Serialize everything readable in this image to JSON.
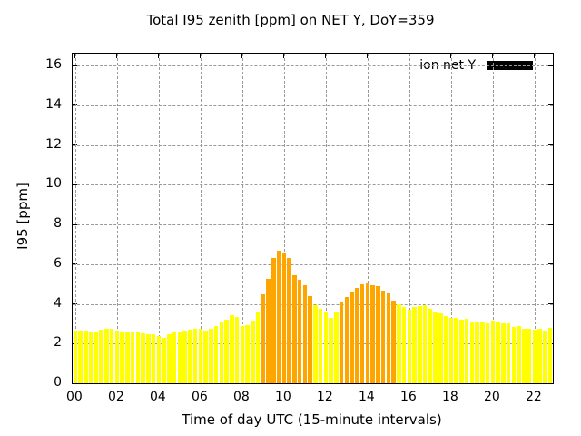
{
  "legend": {
    "label": "ion net Y",
    "swatch_color": "#000000"
  },
  "colors": {
    "background": "#ffffff",
    "axis": "#000000",
    "grid": "#9a9a9a",
    "bar_normal": "#ffff00",
    "bar_highlight": "#ffa500",
    "legend_swatch": "#000000",
    "text": "#000000"
  },
  "chart_data": {
    "type": "bar",
    "title": "Total I95 zenith [ppm] on NET Y, DoY=359",
    "xlabel": "Time of day UTC (15-minute intervals)",
    "ylabel": "I95 [ppm]",
    "x_interval_minutes": 15,
    "x": [
      "00:00",
      "00:15",
      "00:30",
      "00:45",
      "01:00",
      "01:15",
      "01:30",
      "01:45",
      "02:00",
      "02:15",
      "02:30",
      "02:45",
      "03:00",
      "03:15",
      "03:30",
      "03:45",
      "04:00",
      "04:15",
      "04:30",
      "04:45",
      "05:00",
      "05:15",
      "05:30",
      "05:45",
      "06:00",
      "06:15",
      "06:30",
      "06:45",
      "07:00",
      "07:15",
      "07:30",
      "07:45",
      "08:00",
      "08:15",
      "08:30",
      "08:45",
      "09:00",
      "09:15",
      "09:30",
      "09:45",
      "10:00",
      "10:15",
      "10:30",
      "10:45",
      "11:00",
      "11:15",
      "11:30",
      "11:45",
      "12:00",
      "12:15",
      "12:30",
      "12:45",
      "13:00",
      "13:15",
      "13:30",
      "13:45",
      "14:00",
      "14:15",
      "14:30",
      "14:45",
      "15:00",
      "15:15",
      "15:30",
      "15:45",
      "16:00",
      "16:15",
      "16:30",
      "16:45",
      "17:00",
      "17:15",
      "17:30",
      "17:45",
      "18:00",
      "18:15",
      "18:30",
      "18:45",
      "19:00",
      "19:15",
      "19:30",
      "19:45",
      "20:00",
      "20:15",
      "20:30",
      "20:45",
      "21:00",
      "21:15",
      "21:30",
      "21:45",
      "22:00",
      "22:15",
      "22:30",
      "22:45"
    ],
    "values": [
      2.65,
      2.65,
      2.65,
      2.6,
      2.6,
      2.7,
      2.75,
      2.75,
      2.65,
      2.55,
      2.55,
      2.6,
      2.6,
      2.5,
      2.45,
      2.45,
      2.4,
      2.3,
      2.45,
      2.55,
      2.6,
      2.65,
      2.7,
      2.75,
      2.75,
      2.65,
      2.75,
      2.9,
      3.05,
      3.2,
      3.45,
      3.35,
      2.9,
      2.95,
      3.15,
      3.6,
      4.5,
      5.25,
      6.3,
      6.7,
      6.55,
      6.3,
      5.45,
      5.2,
      4.95,
      4.4,
      3.95,
      3.75,
      3.55,
      3.3,
      3.6,
      4.1,
      4.35,
      4.6,
      4.8,
      5.0,
      5.05,
      4.95,
      4.9,
      4.65,
      4.55,
      4.15,
      4.0,
      3.85,
      3.7,
      3.85,
      3.9,
      3.95,
      3.75,
      3.6,
      3.5,
      3.4,
      3.3,
      3.3,
      3.2,
      3.25,
      3.05,
      3.1,
      3.05,
      3.0,
      3.15,
      3.05,
      3.0,
      3.0,
      2.85,
      2.9,
      2.75,
      2.75,
      2.7,
      2.75,
      2.65,
      2.8
    ],
    "highlight_color_ranges": [
      {
        "from": "09:00",
        "to": "11:15"
      },
      {
        "from": "12:45",
        "to": "15:15"
      }
    ],
    "ylim": [
      0,
      16.6
    ],
    "yticks": [
      0,
      2,
      4,
      6,
      8,
      10,
      12,
      14,
      16
    ],
    "xtick_labels": [
      "00",
      "02",
      "04",
      "06",
      "08",
      "10",
      "12",
      "14",
      "16",
      "18",
      "20",
      "22"
    ],
    "xtick_hours": [
      0,
      2,
      4,
      6,
      8,
      10,
      12,
      14,
      16,
      18,
      20,
      22
    ],
    "xlim_hours": [
      -0.125,
      22.875
    ],
    "grid": true,
    "legend_position": "top-right-inside"
  }
}
